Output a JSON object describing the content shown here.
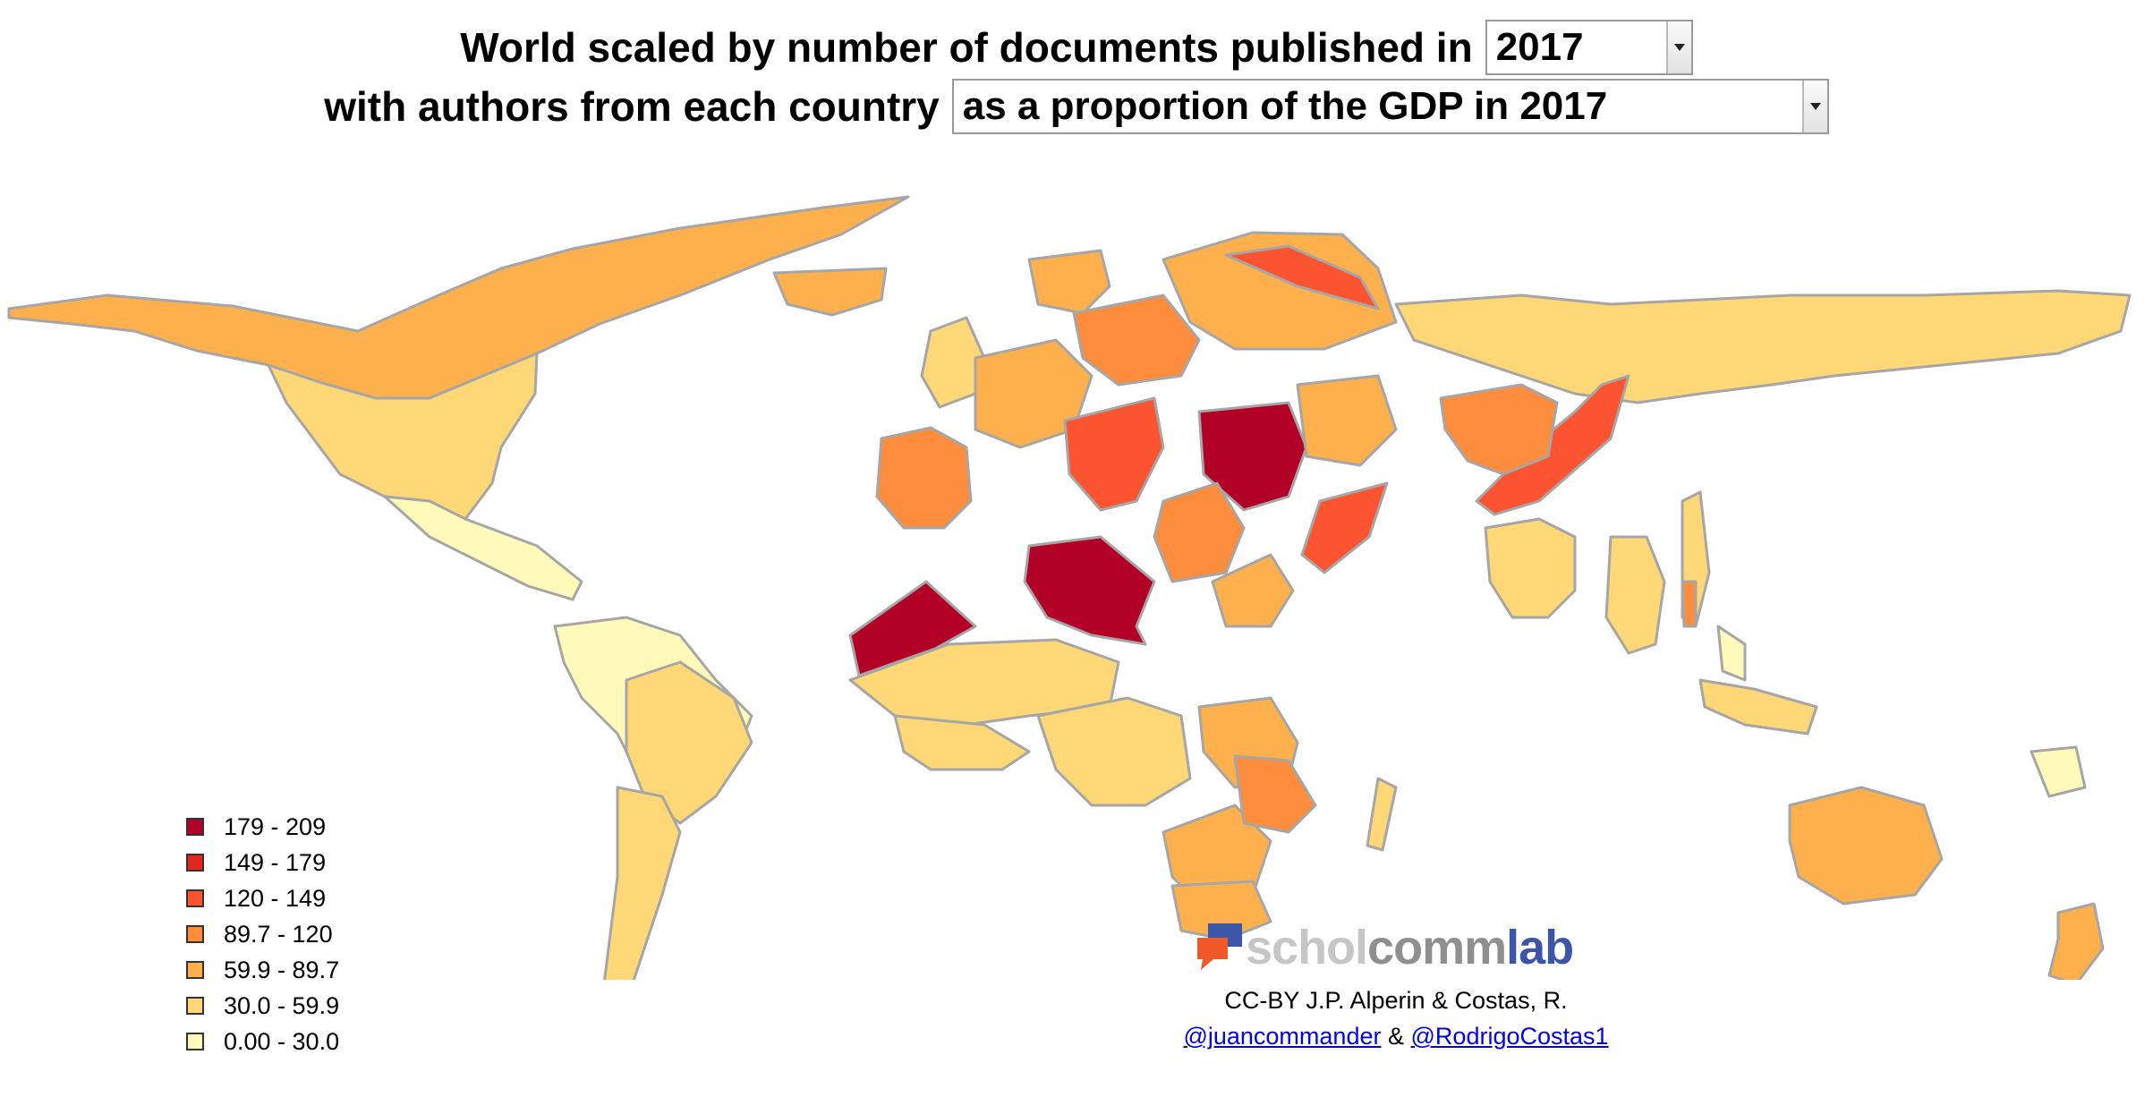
{
  "title": {
    "line1_text": "World scaled by number of documents published in",
    "year_value": "2017",
    "line2_text": "with authors from each country",
    "measure_value": "as a proportion of the GDP in 2017"
  },
  "legend": {
    "items": [
      {
        "label": "179 - 209",
        "color": "#b30026"
      },
      {
        "label": "149 - 179",
        "color": "#e2271d"
      },
      {
        "label": "120 - 149",
        "color": "#fc5430"
      },
      {
        "label": "89.7 - 120",
        "color": "#fd8d3c"
      },
      {
        "label": "59.9 - 89.7",
        "color": "#feb04d"
      },
      {
        "label": "30.0 - 59.9",
        "color": "#fed776"
      },
      {
        "label": "0.00 - 30.0",
        "color": "#fffab9"
      }
    ]
  },
  "logo": {
    "part1": "schol",
    "part2": "comm",
    "part3": "lab"
  },
  "credits": {
    "line1": "CC-BY J.P. Alperin & Costas, R.",
    "link1": "@juancommander",
    "amp": "&",
    "link2": "@RodrigoCostas1"
  },
  "colors": {
    "border": "#a6a6a6",
    "background": "#ffffff"
  }
}
